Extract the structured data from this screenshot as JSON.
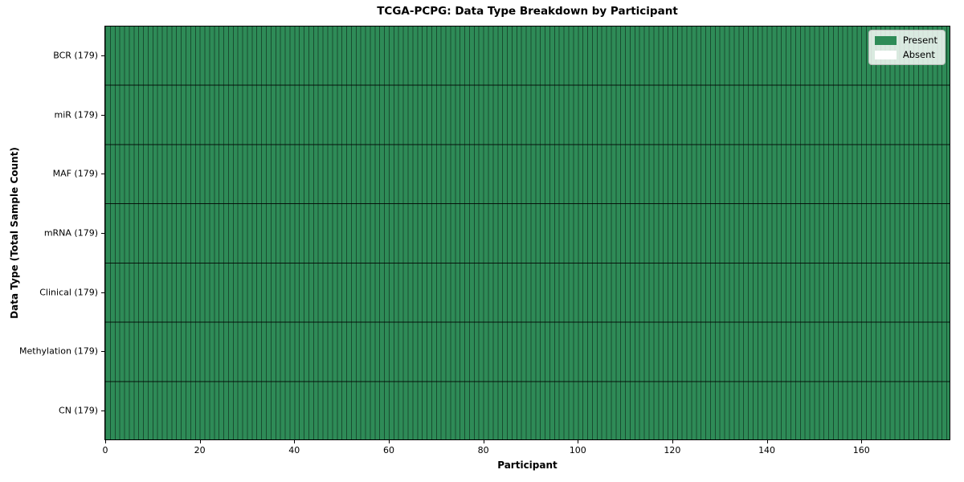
{
  "chart_data": {
    "type": "heatmap",
    "title": "TCGA-PCPG: Data Type Breakdown by Participant",
    "xlabel": "Participant",
    "ylabel": "Data Type (Total Sample Count)",
    "n_participants": 179,
    "xlim": [
      0,
      179
    ],
    "x_ticks": [
      0,
      20,
      40,
      60,
      80,
      100,
      120,
      140,
      160
    ],
    "rows": [
      {
        "label": "BCR (179)",
        "data_type": "BCR",
        "total": 179,
        "present_count": 179,
        "absent_count": 0,
        "all_present": true
      },
      {
        "label": "miR (179)",
        "data_type": "miR",
        "total": 179,
        "present_count": 179,
        "absent_count": 0,
        "all_present": true
      },
      {
        "label": "MAF (179)",
        "data_type": "MAF",
        "total": 179,
        "present_count": 179,
        "absent_count": 0,
        "all_present": true
      },
      {
        "label": "mRNA (179)",
        "data_type": "mRNA",
        "total": 179,
        "present_count": 179,
        "absent_count": 0,
        "all_present": true
      },
      {
        "label": "Clinical (179)",
        "data_type": "Clinical",
        "total": 179,
        "present_count": 179,
        "absent_count": 0,
        "all_present": true
      },
      {
        "label": "Methylation (179)",
        "data_type": "Methylation",
        "total": 179,
        "present_count": 179,
        "absent_count": 0,
        "all_present": true
      },
      {
        "label": "CN (179)",
        "data_type": "CN",
        "total": 179,
        "present_count": 179,
        "absent_count": 0,
        "all_present": true
      }
    ],
    "legend": {
      "position": "upper right",
      "entries": [
        {
          "label": "Present",
          "color": "#2e8b57"
        },
        {
          "label": "Absent",
          "color": "#ffffff"
        }
      ]
    },
    "colors": {
      "present": "#2e8b57",
      "absent": "#ffffff",
      "cell_edge": "rgba(0,0,0,0.45)",
      "row_separator": "rgba(0,0,0,0.85)",
      "frame": "#000000"
    },
    "grid": false
  }
}
